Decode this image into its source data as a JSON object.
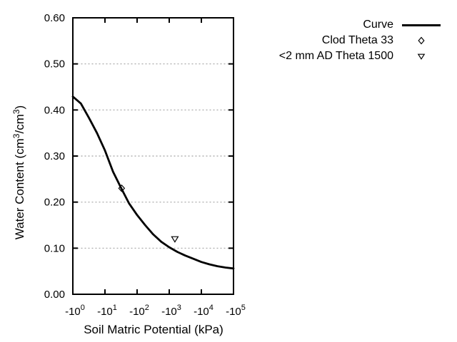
{
  "chart_data": {
    "type": "line",
    "title": "",
    "xlabel": "Soil Matric Potential (kPa)",
    "ylabel": "Water Content (cm3/cm3)",
    "ylabel_parts": {
      "pre": "Water Content (cm",
      "sup1": "3",
      "mid": "/cm",
      "sup2": "3",
      "post": ")"
    },
    "x_axis": {
      "scale": "negative-log10",
      "tick_base": "-10",
      "tick_exponents": [
        0,
        1,
        2,
        3,
        4,
        5
      ],
      "range_decades": [
        0,
        5
      ]
    },
    "y_axis": {
      "tick_labels": [
        "0.00",
        "0.10",
        "0.20",
        "0.30",
        "0.40",
        "0.50",
        "0.60"
      ],
      "tick_values": [
        0.0,
        0.1,
        0.2,
        0.3,
        0.4,
        0.5,
        0.6
      ],
      "grid_values": [
        0.1,
        0.2,
        0.3,
        0.4,
        0.5
      ],
      "range": [
        0.0,
        0.6
      ]
    },
    "grid": "horizontal-dashed",
    "legend_position": "top-right-outside",
    "series": [
      {
        "name": "Curve",
        "type": "line",
        "marker": "none",
        "x_log10_abs_kPa": [
          0,
          0.25,
          0.5,
          0.75,
          1,
          1.25,
          1.5,
          1.75,
          2,
          2.25,
          2.5,
          2.75,
          3,
          3.25,
          3.5,
          3.75,
          4,
          4.25,
          4.5,
          4.75,
          5
        ],
        "y_water_content": [
          0.429,
          0.414,
          0.383,
          0.35,
          0.312,
          0.266,
          0.231,
          0.197,
          0.172,
          0.15,
          0.13,
          0.114,
          0.102,
          0.092,
          0.084,
          0.077,
          0.07,
          0.065,
          0.061,
          0.058,
          0.056
        ]
      },
      {
        "name": "Clod Theta 33",
        "type": "scatter",
        "marker": "open-diamond",
        "points": [
          {
            "matric_potential_kPa": -33,
            "water_content": 0.23
          }
        ]
      },
      {
        "name": "<2 mm AD Theta 1500",
        "type": "scatter",
        "marker": "open-triangle-down",
        "points": [
          {
            "matric_potential_kPa": -1500,
            "water_content": 0.12
          }
        ]
      }
    ],
    "colors": {
      "line": "#000000",
      "text": "#000000",
      "grid": "#a3a3a3",
      "background": "#ffffff"
    }
  }
}
